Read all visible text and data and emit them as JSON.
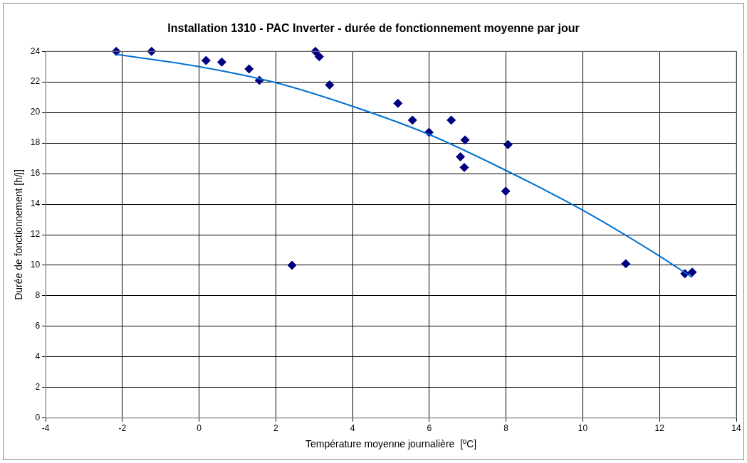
{
  "chart_data": {
    "type": "scatter",
    "title": "Installation 1310 - PAC Inverter - durée de fonctionnement moyenne par jour",
    "xlabel": "Température moyenne journalière  [ºC]",
    "ylabel": "Durée de fonctionnement [h/j]",
    "series": [
      {
        "color": "#000080",
        "marker": "diamond",
        "x": [
          -2.16,
          -1.24,
          0.18,
          0.59,
          1.3,
          1.57,
          2.42,
          3.03,
          3.13,
          3.4,
          5.18,
          5.56,
          5.99,
          6.57,
          6.93,
          6.81,
          6.91,
          7.99,
          8.05,
          11.12,
          12.66,
          12.85
        ],
        "values": [
          24,
          24,
          23.4,
          23.3,
          22.85,
          22.1,
          10,
          24,
          23.65,
          21.8,
          20.6,
          19.5,
          18.7,
          19.5,
          18.2,
          17.1,
          16.4,
          14.85,
          17.9,
          10.1,
          9.45,
          9.55
        ]
      },
      {
        "type": "line",
        "color": "#0070d0",
        "marker": "none",
        "x": [
          -2.16,
          0,
          2,
          4,
          6,
          8,
          10,
          12,
          12.85
        ],
        "values": [
          23.8,
          23.0,
          21.95,
          20.4,
          18.55,
          16.2,
          13.6,
          10.6,
          9.2
        ]
      }
    ],
    "xlim": [
      -4,
      14
    ],
    "xticks": [
      -4,
      -2,
      0,
      2,
      4,
      6,
      8,
      10,
      12,
      14
    ],
    "ylim": [
      0,
      24
    ],
    "yticks": [
      0,
      2,
      4,
      6,
      8,
      10,
      12,
      14,
      16,
      18,
      20,
      22,
      24
    ],
    "grid": true,
    "legend": false
  }
}
